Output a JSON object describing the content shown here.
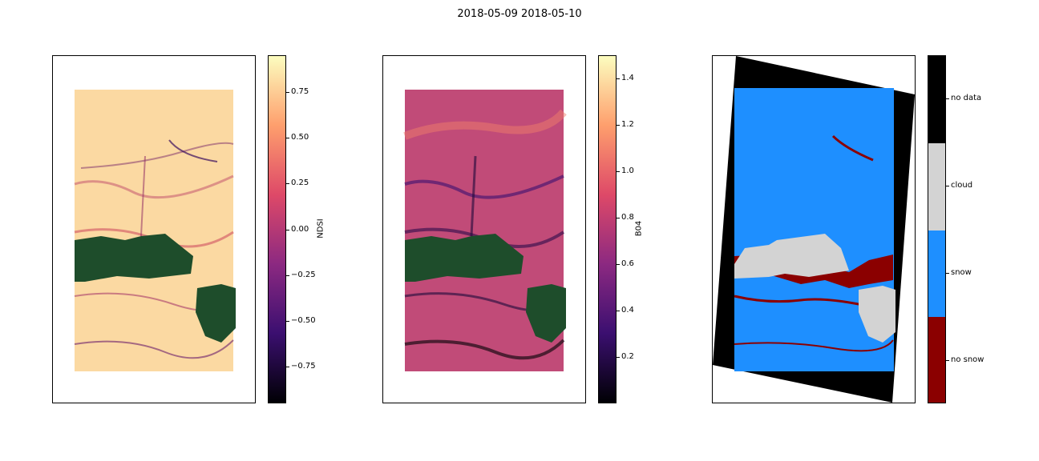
{
  "figure": {
    "title": "2018-05-09 2018-05-10"
  },
  "chart_data": [
    {
      "type": "heatmap",
      "colormap": "magma",
      "colorbar_label": "NDSI",
      "vmin": -0.95,
      "vmax": 0.95,
      "colorbar_ticks": [
        -0.75,
        -0.5,
        -0.25,
        0.0,
        0.25,
        0.5,
        0.75
      ],
      "colorbar_tick_labels": [
        "−0.75",
        "−0.50",
        "−0.25",
        "0.00",
        "0.25",
        "0.50",
        "0.75"
      ],
      "overlay_color": "#1e4d2b",
      "axes_ticks_visible": false
    },
    {
      "type": "heatmap",
      "colormap": "magma",
      "colorbar_label": "B04",
      "vmin": 0.0,
      "vmax": 1.5,
      "colorbar_ticks": [
        0.2,
        0.4,
        0.6,
        0.8,
        1.0,
        1.2,
        1.4
      ],
      "colorbar_tick_labels": [
        "0.2",
        "0.4",
        "0.6",
        "0.8",
        "1.0",
        "1.2",
        "1.4"
      ],
      "overlay_color": "#1e4d2b",
      "axes_ticks_visible": false
    },
    {
      "type": "heatmap",
      "colormap": "categorical",
      "categories": [
        "no snow",
        "snow",
        "cloud",
        "no data"
      ],
      "category_colors": [
        "#8b0000",
        "#1e8fff",
        "#d3d3d3",
        "#000000"
      ],
      "axes_ticks_visible": false
    }
  ]
}
